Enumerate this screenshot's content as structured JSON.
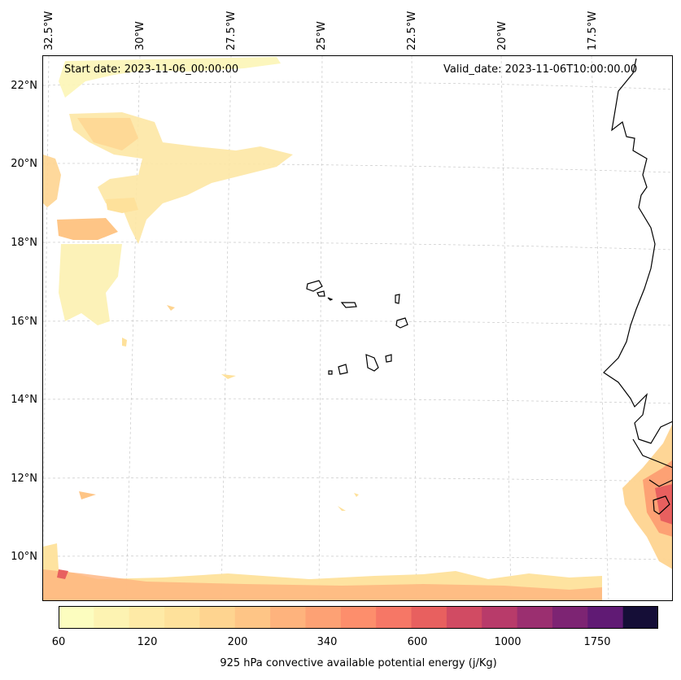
{
  "map": {
    "start_date": "Start date: 2023-11-06_00:00:00",
    "valid_date": "Valid_date: 2023-11-06T10:00:00.00",
    "lon_labels": [
      "32.5°W",
      "30°W",
      "27.5°W",
      "25°W",
      "22.5°W",
      "20°W",
      "17.5°W"
    ],
    "lat_labels": [
      "22°N",
      "20°N",
      "18°N",
      "16°N",
      "14°N",
      "12°N",
      "10°N"
    ],
    "gridlines": true,
    "coastline_color": "#000000",
    "field": "925 hPa CAPE, shaded contours; higher values near the southern boundary and the West African coast around 11–12°N"
  },
  "colorbar": {
    "title": "925 hPa convective available potential energy (j/Kg)",
    "tick_labels": [
      "60",
      "120",
      "200",
      "340",
      "600",
      "1000",
      "1750"
    ],
    "colors": [
      "#fcfdbf",
      "#fdf3b2",
      "#feeaa6",
      "#fee19b",
      "#fed490",
      "#fec586",
      "#feb37d",
      "#fda174",
      "#fd8e6c",
      "#f67766",
      "#e8605f",
      "#d14b63",
      "#b83b6a",
      "#9b2f70",
      "#7d2473",
      "#601a74",
      "#150e37"
    ]
  }
}
